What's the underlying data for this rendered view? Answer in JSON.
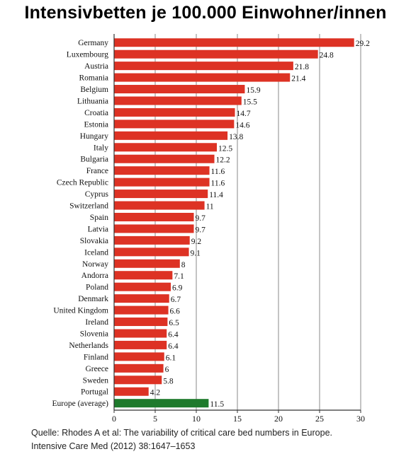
{
  "title": "Intensivbetten je 100.000 Einwohner/innen",
  "source": {
    "line1": "Quelle: Rhodes A et al: The variability of critical care bed numbers in Europe.",
    "line2": "Intensive Care Med (2012) 38:1647–1653"
  },
  "chart_data": {
    "type": "bar",
    "orientation": "horizontal",
    "categories": [
      "Germany",
      "Luxembourg",
      "Austria",
      "Romania",
      "Belgium",
      "Lithuania",
      "Croatia",
      "Estonia",
      "Hungary",
      "Italy",
      "Bulgaria",
      "France",
      "Czech Republic",
      "Cyprus",
      "Switzerland",
      "Spain",
      "Latvia",
      "Slovakia",
      "Iceland",
      "Norway",
      "Andorra",
      "Poland",
      "Denmark",
      "United Kingdom",
      "Ireland",
      "Slovenia",
      "Netherlands",
      "Finland",
      "Greece",
      "Sweden",
      "Portugal",
      "Europe (average)"
    ],
    "values": [
      29.2,
      24.8,
      21.8,
      21.4,
      15.9,
      15.5,
      14.7,
      14.6,
      13.8,
      12.5,
      12.2,
      11.6,
      11.6,
      11.4,
      11,
      9.7,
      9.7,
      9.2,
      9.1,
      8,
      7.1,
      6.9,
      6.7,
      6.6,
      6.5,
      6.4,
      6.4,
      6.1,
      6,
      5.8,
      4.2,
      11.5
    ],
    "value_labels": [
      "29.2",
      "24.8",
      "21.8",
      "21.4",
      "15.9",
      "15.5",
      "14.7",
      "14.6",
      "13.8",
      "12.5",
      "12.2",
      "11.6",
      "11.6",
      "11.4",
      "11",
      "9.7",
      "9.7",
      "9.2",
      "9.1",
      "8",
      "7.1",
      "6.9",
      "6.7",
      "6.6",
      "6.5",
      "6.4",
      "6.4",
      "6.1",
      "6",
      "5.8",
      "4.2",
      "11.5"
    ],
    "highlight_index": 31,
    "xlim": [
      0,
      30
    ],
    "xticks": [
      0,
      5,
      10,
      15,
      20,
      25,
      30
    ],
    "grid": "vertical",
    "colors": {
      "bar": "#dd3224",
      "highlight": "#1e7a2c",
      "grid": "#8a8a8a",
      "axis": "#333333"
    }
  }
}
